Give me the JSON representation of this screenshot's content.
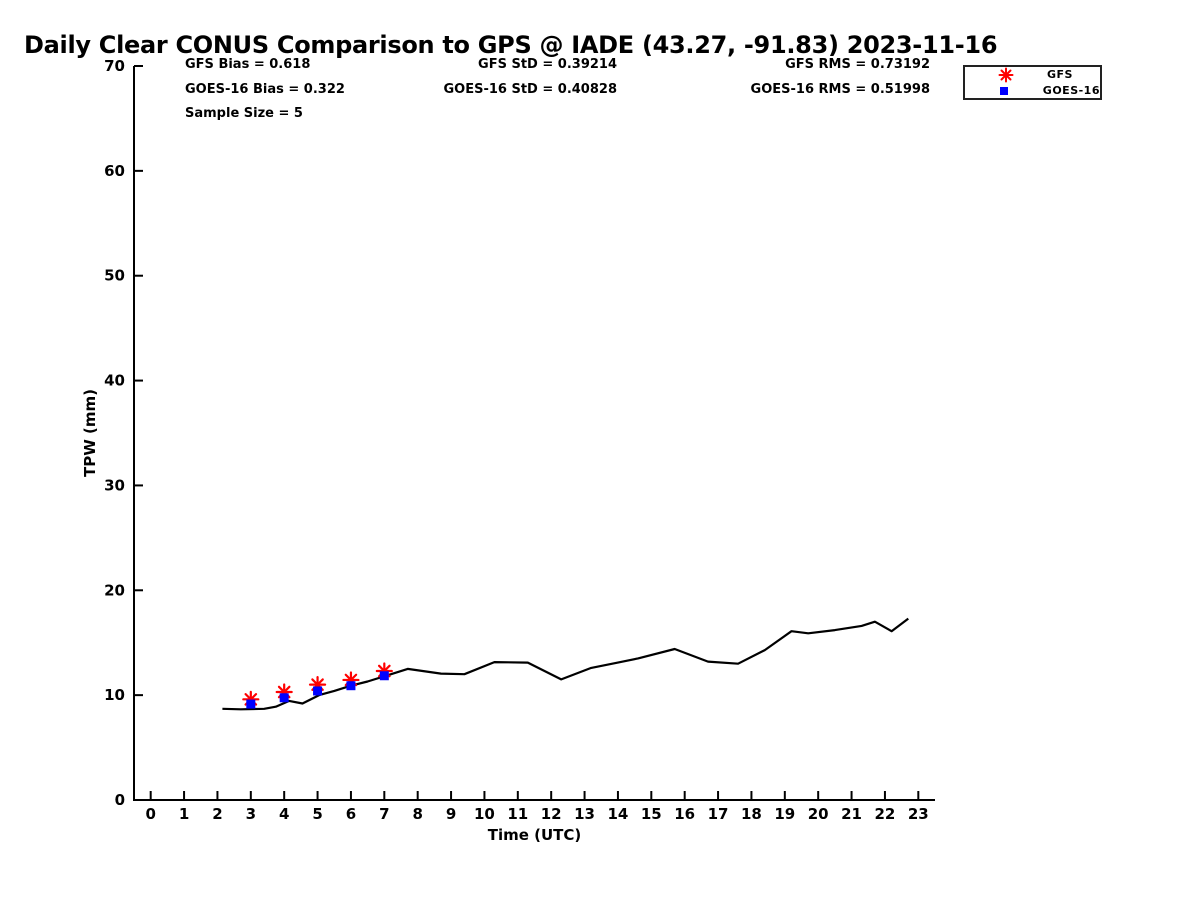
{
  "title": "Daily Clear CONUS Comparison to GPS @ IADE (43.27, -91.83) 2023-11-16",
  "stats": {
    "rows": [
      {
        "col1": "GFS Bias = 0.618",
        "col2": "GFS StD = 0.39214",
        "col3": "GFS RMS = 0.73192"
      },
      {
        "col1": "GOES-16 Bias = 0.322",
        "col2": "GOES-16 StD = 0.40828",
        "col3": "GOES-16 RMS = 0.51998"
      },
      {
        "col1": "Sample Size = 5"
      }
    ]
  },
  "legend": {
    "entries": [
      {
        "label": "GFS",
        "marker": "asterisk",
        "color": "#ff0000"
      },
      {
        "label": "GOES-16",
        "marker": "square",
        "color": "#0000ff"
      }
    ]
  },
  "chart_data": {
    "type": "line",
    "title": "Daily Clear CONUS Comparison to GPS @ IADE (43.27, -91.83) 2023-11-16",
    "xlabel": "Time (UTC)",
    "ylabel": "TPW (mm)",
    "xlim": [
      -0.5,
      23.5
    ],
    "ylim": [
      0,
      70
    ],
    "xticks": [
      0,
      1,
      2,
      3,
      4,
      5,
      6,
      7,
      8,
      9,
      10,
      11,
      12,
      13,
      14,
      15,
      16,
      17,
      18,
      19,
      20,
      21,
      22,
      23
    ],
    "yticks": [
      0,
      10,
      20,
      30,
      40,
      50,
      60,
      70
    ],
    "grid": false,
    "legend_position": "top-right",
    "axis_color": "#000000",
    "series": [
      {
        "name": "GPS",
        "style": "line",
        "color": "#000000",
        "line_width": 2.2,
        "points": [
          [
            2.15,
            8.7
          ],
          [
            2.7,
            8.65
          ],
          [
            3.4,
            8.7
          ],
          [
            3.75,
            8.9
          ],
          [
            4.15,
            9.45
          ],
          [
            4.55,
            9.2
          ],
          [
            5.05,
            10.0
          ],
          [
            5.5,
            10.4
          ],
          [
            6.0,
            10.9
          ],
          [
            6.5,
            11.3
          ],
          [
            7.0,
            11.8
          ],
          [
            7.7,
            12.5
          ],
          [
            8.7,
            12.05
          ],
          [
            9.4,
            12.0
          ],
          [
            10.3,
            13.15
          ],
          [
            11.3,
            13.1
          ],
          [
            12.3,
            11.5
          ],
          [
            13.2,
            12.6
          ],
          [
            14.0,
            13.1
          ],
          [
            14.6,
            13.5
          ],
          [
            15.7,
            14.4
          ],
          [
            16.7,
            13.2
          ],
          [
            17.6,
            13.0
          ],
          [
            18.4,
            14.3
          ],
          [
            19.2,
            16.1
          ],
          [
            19.7,
            15.9
          ],
          [
            20.5,
            16.2
          ],
          [
            21.3,
            16.6
          ],
          [
            21.7,
            17.0
          ],
          [
            22.2,
            16.1
          ],
          [
            22.7,
            17.3
          ]
        ]
      },
      {
        "name": "GFS",
        "style": "scatter",
        "marker": "asterisk",
        "color": "#ff0000",
        "points": [
          [
            3,
            9.6
          ],
          [
            4,
            10.3
          ],
          [
            5,
            11.0
          ],
          [
            6,
            11.45
          ],
          [
            7,
            12.3
          ]
        ]
      },
      {
        "name": "GOES-16",
        "style": "scatter",
        "marker": "square",
        "color": "#0000ff",
        "points": [
          [
            3,
            9.15
          ],
          [
            4,
            9.75
          ],
          [
            5,
            10.4
          ],
          [
            6,
            10.9
          ],
          [
            7,
            11.85
          ]
        ]
      }
    ],
    "annotations": [
      "GFS Bias = 0.618",
      "GFS StD = 0.39214",
      "GFS RMS = 0.73192",
      "GOES-16 Bias = 0.322",
      "GOES-16 StD = 0.40828",
      "GOES-16 RMS = 0.51998",
      "Sample Size = 5"
    ]
  }
}
